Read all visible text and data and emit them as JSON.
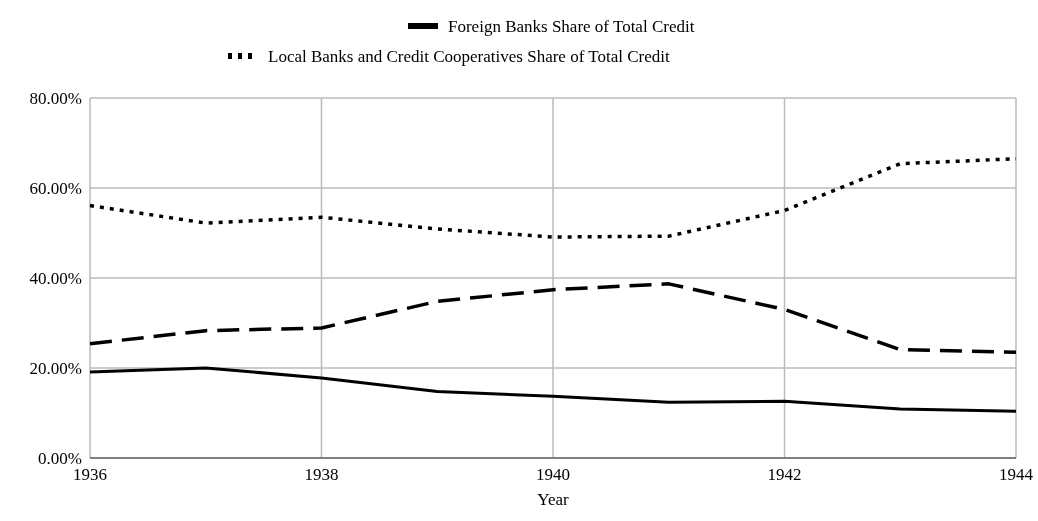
{
  "chart_data": {
    "type": "line",
    "xlabel": "Year",
    "x": [
      1936,
      1937,
      1938,
      1939,
      1940,
      1941,
      1942,
      1943,
      1944
    ],
    "xlim": [
      1936,
      1944
    ],
    "xticks": [
      1936,
      1938,
      1940,
      1942,
      1944
    ],
    "ylim": [
      0,
      80
    ],
    "yticks": [
      {
        "value": 0,
        "label": "0.00%"
      },
      {
        "value": 20,
        "label": "20.00%"
      },
      {
        "value": 40,
        "label": "40.00%"
      },
      {
        "value": 60,
        "label": "60.00%"
      },
      {
        "value": 80,
        "label": "80.00%"
      }
    ],
    "grid": true,
    "legend": "top",
    "marker": "none",
    "series": [
      {
        "color": "#000000",
        "line_style": "dashed",
        "values": [
          25.4,
          28.3,
          28.9,
          34.8,
          37.4,
          38.7,
          33.0,
          24.1,
          23.5
        ]
      },
      {
        "name": "Foreign Banks Share of Total Credit",
        "color": "#000000",
        "line_style": "solid",
        "values": [
          19.1,
          20.0,
          17.8,
          14.8,
          13.7,
          12.4,
          12.6,
          10.9,
          10.4
        ]
      },
      {
        "name": "Local Banks and Credit Cooperatives Share of Total Credit",
        "color": "#000000",
        "line_style": "dotted",
        "values": [
          56.1,
          52.2,
          53.5,
          50.9,
          49.1,
          49.3,
          55.0,
          65.4,
          66.5
        ]
      }
    ]
  }
}
